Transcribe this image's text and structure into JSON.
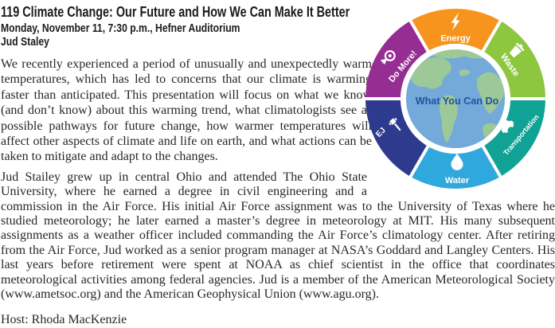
{
  "event": {
    "title": "119 Climate Change: Our Future and How We Can Make It Better",
    "datetime_location": "Monday, November 11, 7:30 p.m., Hefner Auditorium",
    "speaker": "Jud Staley",
    "abstract": "We recently experienced a period of unusually and unexpectedly warm temperatures, which has led to concerns that our climate is warming faster than anticipated. This presentation will focus on what we know (and don’t know) about this warming trend, what climatologists see as possible pathways for future change, how warmer temperatures will affect other aspects of climate and life on earth, and what actions can be taken to mitigate and adapt to the changes.",
    "bio": "Jud Stailey grew up in central Ohio and attended The Ohio State University, where he earned a degree in civil engineering and a commission in the Air Force. His initial Air Force assignment was to the University of Texas where he studied meteorology; he later earned a master’s degree in meteorology at MIT. His many subsequent assignments as a weather officer included commanding the Air Force’s climatology center. After retiring from the Air Force, Jud worked as a senior program manager at NASA’s Goddard and Langley Centers. His last years before retirement were spent at NOAA as chief scientist in the office that coordinates meteorological activities among federal agencies. Jud is a member of the American Meteorological Society (www.ametsoc.org) and the American Geophysical Union (www.agu.org).",
    "host": "Host: Rhoda MacKenzie"
  },
  "wheel": {
    "center_label": "What You Can Do",
    "globe": {
      "ocean_color": "#73aad9",
      "land_color": "#9dc897",
      "text_color": "#1e53a4",
      "ring_color": "#ffffff"
    },
    "separator_color": "#ffffff",
    "segments": [
      {
        "label": "Energy",
        "color": "#f7941e",
        "icon": "lightning-icon"
      },
      {
        "label": "Waste",
        "color": "#8dc63f",
        "icon": "trash-icon"
      },
      {
        "label": "Transportation",
        "color": "#10a295",
        "icon": "car-icon"
      },
      {
        "label": "Water",
        "color": "#2fa8dd",
        "icon": "water-drop-icon"
      },
      {
        "label": "EJ",
        "color": "#2e3a8d",
        "icon": "gavel-icon"
      },
      {
        "label": "Do More!",
        "color": "#962d92",
        "icon": "cursor-click-icon"
      }
    ]
  }
}
